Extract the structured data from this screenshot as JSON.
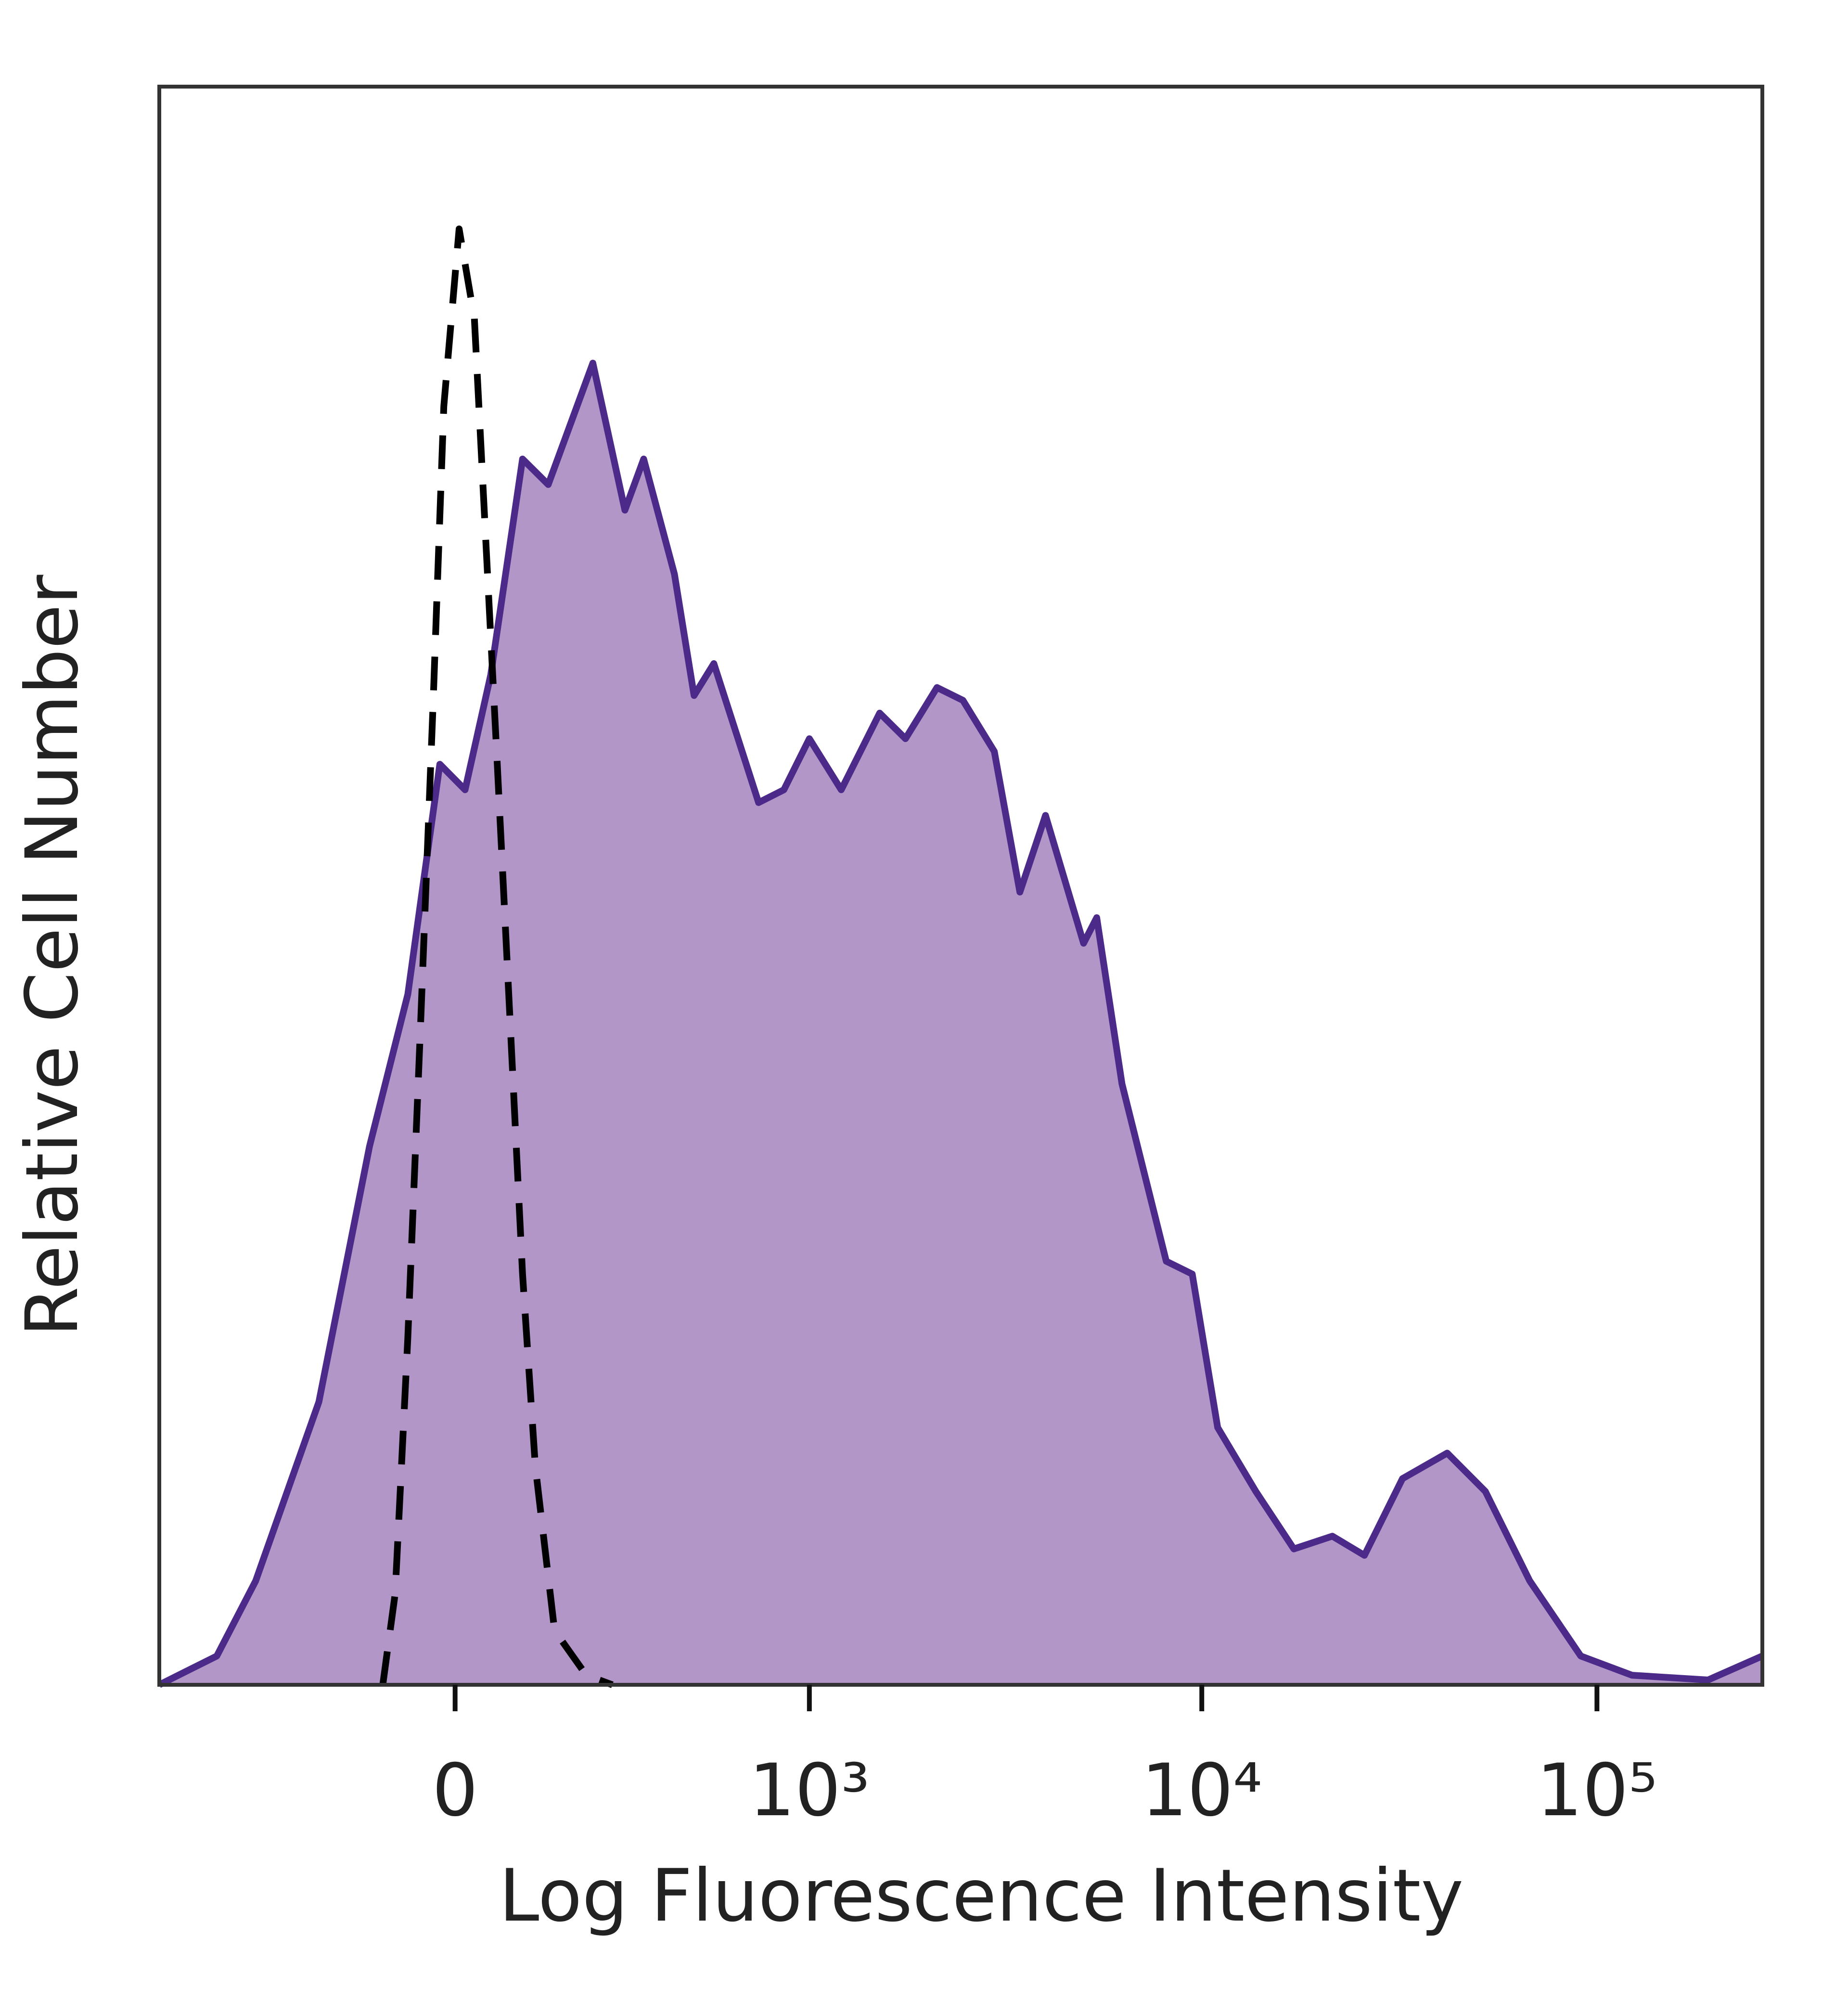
{
  "chart_data": {
    "type": "histogram-overlay",
    "xlabel": "Log Fluorescence Intensity",
    "ylabel": "Relative Cell Number",
    "xscale": "asinh",
    "xlim": [
      -700,
      262144
    ],
    "xticks": [
      0,
      {
        "value": 1000,
        "label": "10³"
      },
      {
        "value": 10000,
        "label": "10⁴"
      },
      {
        "value": 100000,
        "label": "10⁵"
      }
    ],
    "ylim": [
      0,
      100
    ],
    "series": [
      {
        "color": "#4b2a8a",
        "fill": "#b296c8",
        "line_style": "solid",
        "x": [
          -700,
          -485,
          -372,
          -227,
          -134,
          -72,
          -23,
          15,
          54,
          104,
          147,
          230,
          299,
          344,
          427,
          487,
          554,
          734,
          857,
          1000,
          1210,
          1520,
          1770,
          2130,
          2480,
          2980,
          3460,
          4020,
          5020,
          5420,
          6280,
          8130,
          9460,
          10970,
          13700,
          17100,
          21400,
          25800,
          32200,
          41800,
          52200,
          67600,
          91000,
          122600,
          191000,
          262144
        ],
        "values": [
          0,
          1.8,
          6.5,
          17.7,
          33.7,
          43.2,
          57.6,
          56.0,
          63.2,
          76.7,
          75.1,
          82.7,
          73.5,
          76.7,
          69.5,
          61.9,
          63.9,
          55.2,
          56.0,
          59.2,
          56.0,
          60.8,
          59.2,
          62.4,
          61.6,
          58.4,
          49.6,
          54.4,
          46.4,
          48.0,
          37.6,
          26.5,
          25.7,
          16.1,
          12.1,
          8.5,
          9.3,
          8.1,
          12.9,
          14.5,
          12.1,
          6.5,
          1.8,
          0.6,
          0.3,
          1.8
        ]
      },
      {
        "color": "#000000",
        "fill": "none",
        "line_style": "dashed",
        "x": [
          -112,
          -92,
          -72,
          -52,
          -33,
          -17,
          6,
          29,
          44,
          64,
          84,
          104,
          125,
          158,
          217,
          271
        ],
        "values": [
          0,
          5.7,
          21.7,
          41.6,
          61.6,
          80.0,
          91.1,
          85.5,
          73.5,
          57.6,
          41.6,
          25.7,
          13.7,
          3.4,
          0.6,
          0
        ]
      }
    ]
  }
}
